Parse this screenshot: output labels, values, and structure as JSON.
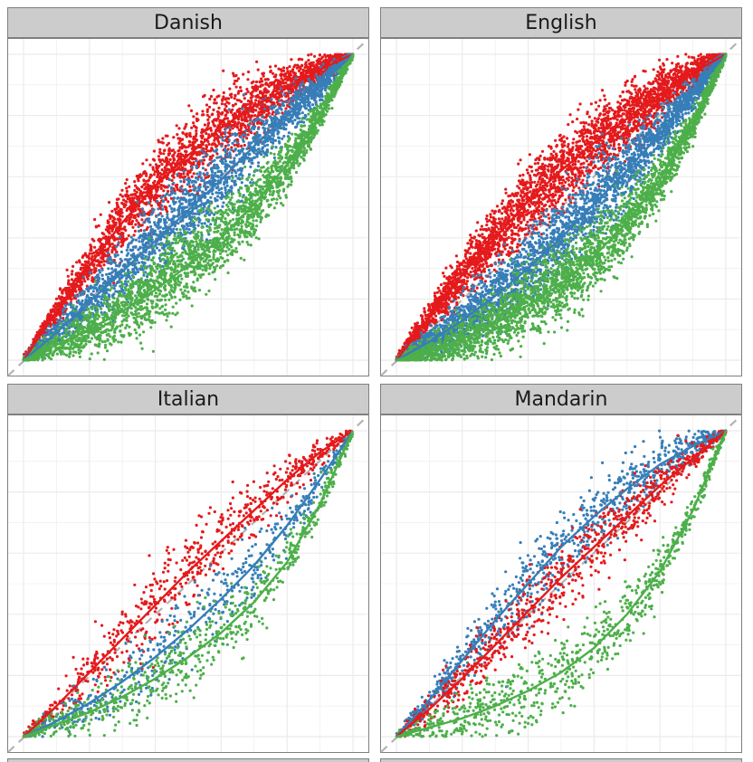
{
  "colors": {
    "red": "#e41a1c",
    "blue": "#377eb8",
    "green": "#4daf4a",
    "diagonal": "#b3b3b3",
    "grid": "#ebebeb",
    "panel_border": "#7f7f7f",
    "strip_fill": "#cccccc"
  },
  "chart_data": {
    "type": "scatter",
    "layout": "facet-2x2",
    "reference_line": "y = x (dashed)",
    "grid": true,
    "xlim": [
      0,
      1
    ],
    "ylim": [
      0,
      1
    ],
    "facets": [
      {
        "name": "Danish",
        "series": [
          {
            "color": "red",
            "points": 2600,
            "curve_x": [
              0,
              0.1,
              0.2,
              0.3,
              0.4,
              0.5,
              0.6,
              0.7,
              0.8,
              0.9,
              1.0
            ],
            "curve_y": [
              0,
              0.16,
              0.31,
              0.45,
              0.57,
              0.67,
              0.76,
              0.83,
              0.89,
              0.95,
              1.0
            ]
          },
          {
            "color": "blue",
            "points": 2300,
            "curve_x": [
              0,
              0.1,
              0.2,
              0.3,
              0.4,
              0.5,
              0.6,
              0.7,
              0.8,
              0.9,
              1.0
            ],
            "curve_y": [
              0,
              0.09,
              0.19,
              0.29,
              0.39,
              0.49,
              0.59,
              0.7,
              0.8,
              0.9,
              1.0
            ]
          },
          {
            "color": "green",
            "points": 2600,
            "curve_x": [
              0,
              0.1,
              0.2,
              0.3,
              0.4,
              0.5,
              0.6,
              0.7,
              0.8,
              0.9,
              1.0
            ],
            "curve_y": [
              0,
              0.05,
              0.1,
              0.16,
              0.23,
              0.31,
              0.4,
              0.51,
              0.64,
              0.8,
              1.0
            ]
          }
        ]
      },
      {
        "name": "English",
        "series": [
          {
            "color": "red",
            "points": 3200,
            "curve_x": [
              0,
              0.1,
              0.2,
              0.3,
              0.4,
              0.5,
              0.6,
              0.7,
              0.8,
              0.9,
              1.0
            ],
            "curve_y": [
              0,
              0.14,
              0.28,
              0.4,
              0.52,
              0.62,
              0.71,
              0.79,
              0.87,
              0.94,
              1.0
            ]
          },
          {
            "color": "blue",
            "points": 3000,
            "curve_x": [
              0,
              0.1,
              0.2,
              0.3,
              0.4,
              0.5,
              0.6,
              0.7,
              0.8,
              0.9,
              1.0
            ],
            "curve_y": [
              0,
              0.06,
              0.13,
              0.21,
              0.3,
              0.4,
              0.51,
              0.62,
              0.74,
              0.87,
              1.0
            ]
          },
          {
            "color": "green",
            "points": 3000,
            "curve_x": [
              0,
              0.1,
              0.2,
              0.3,
              0.4,
              0.5,
              0.6,
              0.7,
              0.8,
              0.9,
              1.0
            ],
            "curve_y": [
              0,
              0.03,
              0.07,
              0.12,
              0.18,
              0.25,
              0.34,
              0.45,
              0.59,
              0.77,
              1.0
            ]
          }
        ]
      },
      {
        "name": "Italian",
        "series": [
          {
            "color": "red",
            "points": 700,
            "curve_x": [
              0,
              0.1,
              0.2,
              0.3,
              0.4,
              0.5,
              0.6,
              0.7,
              0.8,
              0.9,
              1.0
            ],
            "curve_y": [
              0,
              0.1,
              0.21,
              0.32,
              0.43,
              0.54,
              0.64,
              0.74,
              0.84,
              0.93,
              1.0
            ]
          },
          {
            "color": "blue",
            "points": 500,
            "curve_x": [
              0,
              0.1,
              0.2,
              0.3,
              0.4,
              0.5,
              0.6,
              0.7,
              0.8,
              0.9,
              1.0
            ],
            "curve_y": [
              0,
              0.05,
              0.11,
              0.18,
              0.26,
              0.35,
              0.45,
              0.56,
              0.69,
              0.84,
              1.0
            ]
          },
          {
            "color": "green",
            "points": 700,
            "curve_x": [
              0,
              0.1,
              0.2,
              0.3,
              0.4,
              0.5,
              0.6,
              0.7,
              0.8,
              0.9,
              1.0
            ],
            "curve_y": [
              0,
              0.04,
              0.08,
              0.13,
              0.19,
              0.26,
              0.34,
              0.44,
              0.57,
              0.76,
              1.0
            ]
          }
        ]
      },
      {
        "name": "Mandarin",
        "series": [
          {
            "color": "blue",
            "points": 900,
            "curve_x": [
              0,
              0.1,
              0.2,
              0.3,
              0.4,
              0.5,
              0.6,
              0.7,
              0.8,
              0.9,
              1.0
            ],
            "curve_y": [
              0,
              0.12,
              0.25,
              0.38,
              0.5,
              0.62,
              0.72,
              0.81,
              0.89,
              0.95,
              1.0
            ]
          },
          {
            "color": "red",
            "points": 800,
            "curve_x": [
              0,
              0.1,
              0.2,
              0.3,
              0.4,
              0.5,
              0.6,
              0.7,
              0.8,
              0.9,
              1.0
            ],
            "curve_y": [
              0,
              0.09,
              0.19,
              0.3,
              0.41,
              0.52,
              0.62,
              0.72,
              0.82,
              0.91,
              1.0
            ]
          },
          {
            "color": "green",
            "points": 800,
            "curve_x": [
              0,
              0.1,
              0.2,
              0.3,
              0.4,
              0.5,
              0.6,
              0.7,
              0.8,
              0.9,
              1.0
            ],
            "curve_y": [
              0,
              0.03,
              0.06,
              0.1,
              0.15,
              0.21,
              0.29,
              0.4,
              0.54,
              0.74,
              1.0
            ]
          }
        ]
      }
    ]
  }
}
